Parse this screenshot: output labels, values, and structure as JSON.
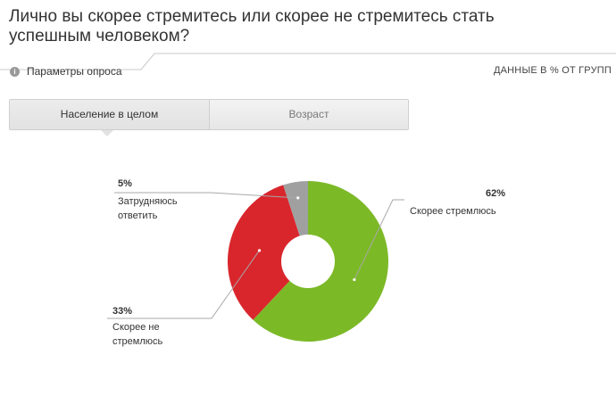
{
  "title": "Лично вы скорее стремитесь или скорее не стремитесь стать успешным человеком?",
  "params_label": "Параметры опроса",
  "units_label": "ДАННЫЕ В % ОТ ГРУПП",
  "tabs": [
    {
      "label": "Население в целом",
      "active": true
    },
    {
      "label": "Возраст",
      "active": false
    }
  ],
  "colors": {
    "green": "#7cb927",
    "red": "#d9262c",
    "gray": "#a0a0a0"
  },
  "chart_data": {
    "type": "pie",
    "title": "Лично вы скорее стремитесь или скорее не стремитесь стать успешным человеком?",
    "slices": [
      {
        "label_lines": [
          "Скорее стремлюсь"
        ],
        "value": 62,
        "value_label": "62%",
        "color": "#7cb927"
      },
      {
        "label_lines": [
          "Скорее не",
          "стремлюсь"
        ],
        "value": 33,
        "value_label": "33%",
        "color": "#d9262c"
      },
      {
        "label_lines": [
          "Затрудняюсь",
          "ответить"
        ],
        "value": 5,
        "value_label": "5%",
        "color": "#a0a0a0"
      }
    ]
  }
}
